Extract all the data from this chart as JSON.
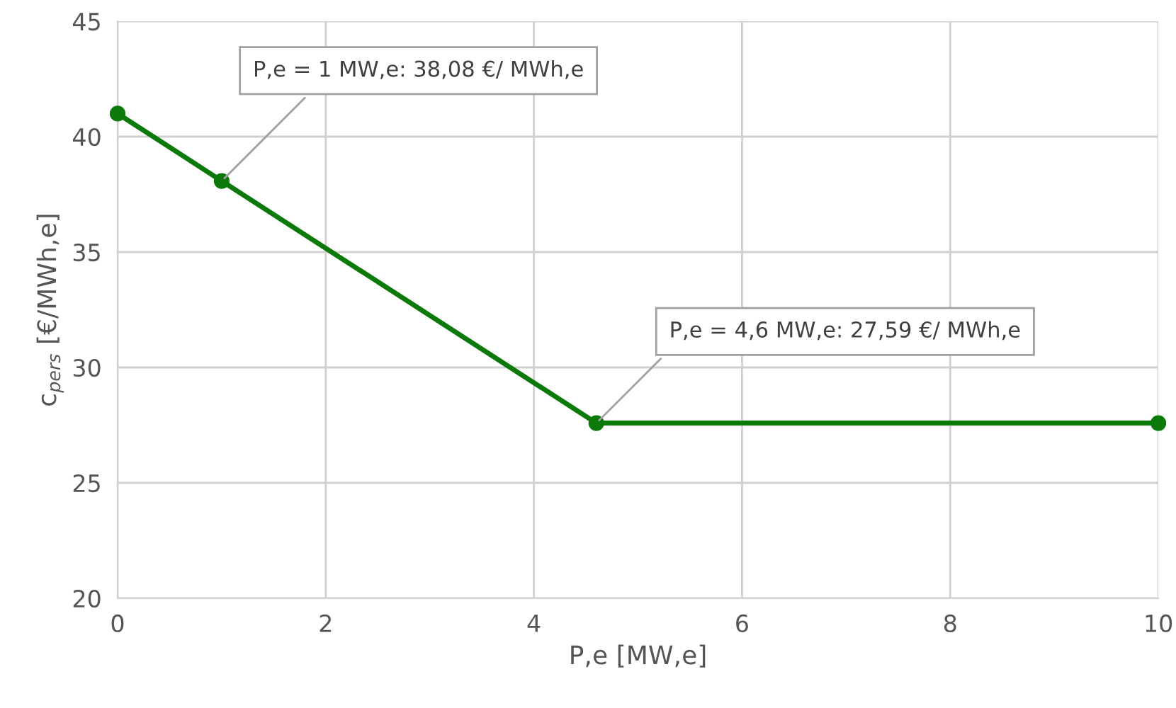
{
  "chart_data": {
    "type": "line",
    "xlabel": "P,e [MW,e]",
    "ylabel": "c$_{pers}$ [€/MWh,e]",
    "x": [
      0,
      1,
      4.6,
      10
    ],
    "series": [
      {
        "color": "#0b7a0b",
        "values": [
          41,
          38.08,
          27.59,
          27.59
        ]
      }
    ],
    "xlim": [
      0,
      10
    ],
    "xticks": [
      0,
      2,
      4,
      6,
      8,
      10
    ],
    "ylim": [
      20,
      45
    ],
    "yticks": [
      20,
      25,
      30,
      35,
      40,
      45
    ],
    "grid": true,
    "marker": "circle",
    "line_style": "solid",
    "annotations": [
      {
        "text": "P,e = 1 MW,e: 38,08 €/ MWh,e",
        "x": 1,
        "y": 38.08
      },
      {
        "text": "P,e = 4,6 MW,e: 27,59 €/ MWh,e",
        "x": 4.6,
        "y": 27.59
      }
    ]
  }
}
